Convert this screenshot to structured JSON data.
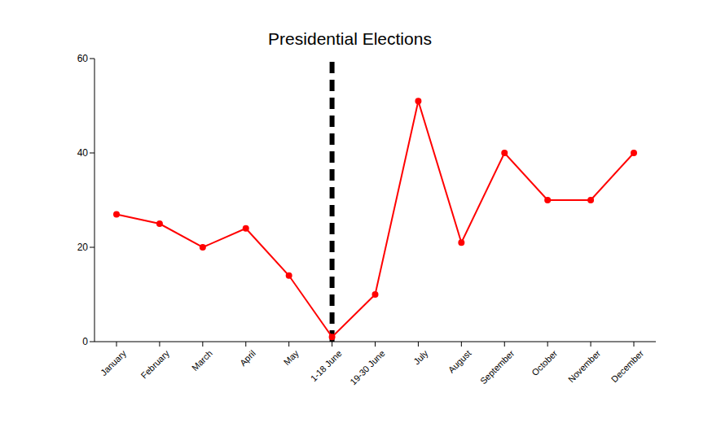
{
  "chart_data": {
    "type": "line",
    "title": "Presidential Elections",
    "categories": [
      "January",
      "February",
      "March",
      "April",
      "May",
      "1-18 June",
      "19-30 June",
      "July",
      "August",
      "September",
      "October",
      "November",
      "December"
    ],
    "values": [
      27,
      25,
      20,
      24,
      14,
      1,
      10,
      51,
      21,
      40,
      30,
      30,
      40
    ],
    "color": "#ff0000",
    "marker": "circle",
    "line_style": "solid",
    "ylim": [
      0,
      60
    ],
    "yticks": [
      0,
      20,
      40,
      60
    ],
    "grid": false,
    "annotations": [
      {
        "type": "vline",
        "x": "1-18 June",
        "color": "#000000",
        "line_style": "dashed"
      }
    ]
  }
}
